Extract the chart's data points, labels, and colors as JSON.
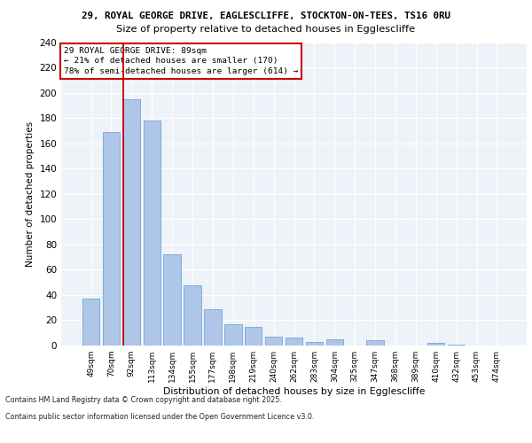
{
  "title_line1": "29, ROYAL GEORGE DRIVE, EAGLESCLIFFE, STOCKTON-ON-TEES, TS16 0RU",
  "title_line2": "Size of property relative to detached houses in Egglescliffe",
  "xlabel": "Distribution of detached houses by size in Egglescliffe",
  "ylabel": "Number of detached properties",
  "categories": [
    "49sqm",
    "70sqm",
    "92sqm",
    "113sqm",
    "134sqm",
    "155sqm",
    "177sqm",
    "198sqm",
    "219sqm",
    "240sqm",
    "262sqm",
    "283sqm",
    "304sqm",
    "325sqm",
    "347sqm",
    "368sqm",
    "389sqm",
    "410sqm",
    "432sqm",
    "453sqm",
    "474sqm"
  ],
  "values": [
    37,
    169,
    195,
    178,
    72,
    48,
    29,
    17,
    15,
    7,
    6,
    3,
    5,
    0,
    4,
    0,
    0,
    2,
    1,
    0,
    0
  ],
  "bar_color": "#aec6e8",
  "bar_edge_color": "#5b9bd5",
  "property_line_idx": 2,
  "annotation_text": "29 ROYAL GEORGE DRIVE: 89sqm\n← 21% of detached houses are smaller (170)\n78% of semi-detached houses are larger (614) →",
  "annotation_box_color": "#ffffff",
  "annotation_box_edge": "#cc0000",
  "vline_color": "#cc0000",
  "ylim": [
    0,
    240
  ],
  "yticks": [
    0,
    20,
    40,
    60,
    80,
    100,
    120,
    140,
    160,
    180,
    200,
    220,
    240
  ],
  "background_color": "#eef2f9",
  "grid_color": "#ffffff",
  "footer_line1": "Contains HM Land Registry data © Crown copyright and database right 2025.",
  "footer_line2": "Contains public sector information licensed under the Open Government Licence v3.0."
}
